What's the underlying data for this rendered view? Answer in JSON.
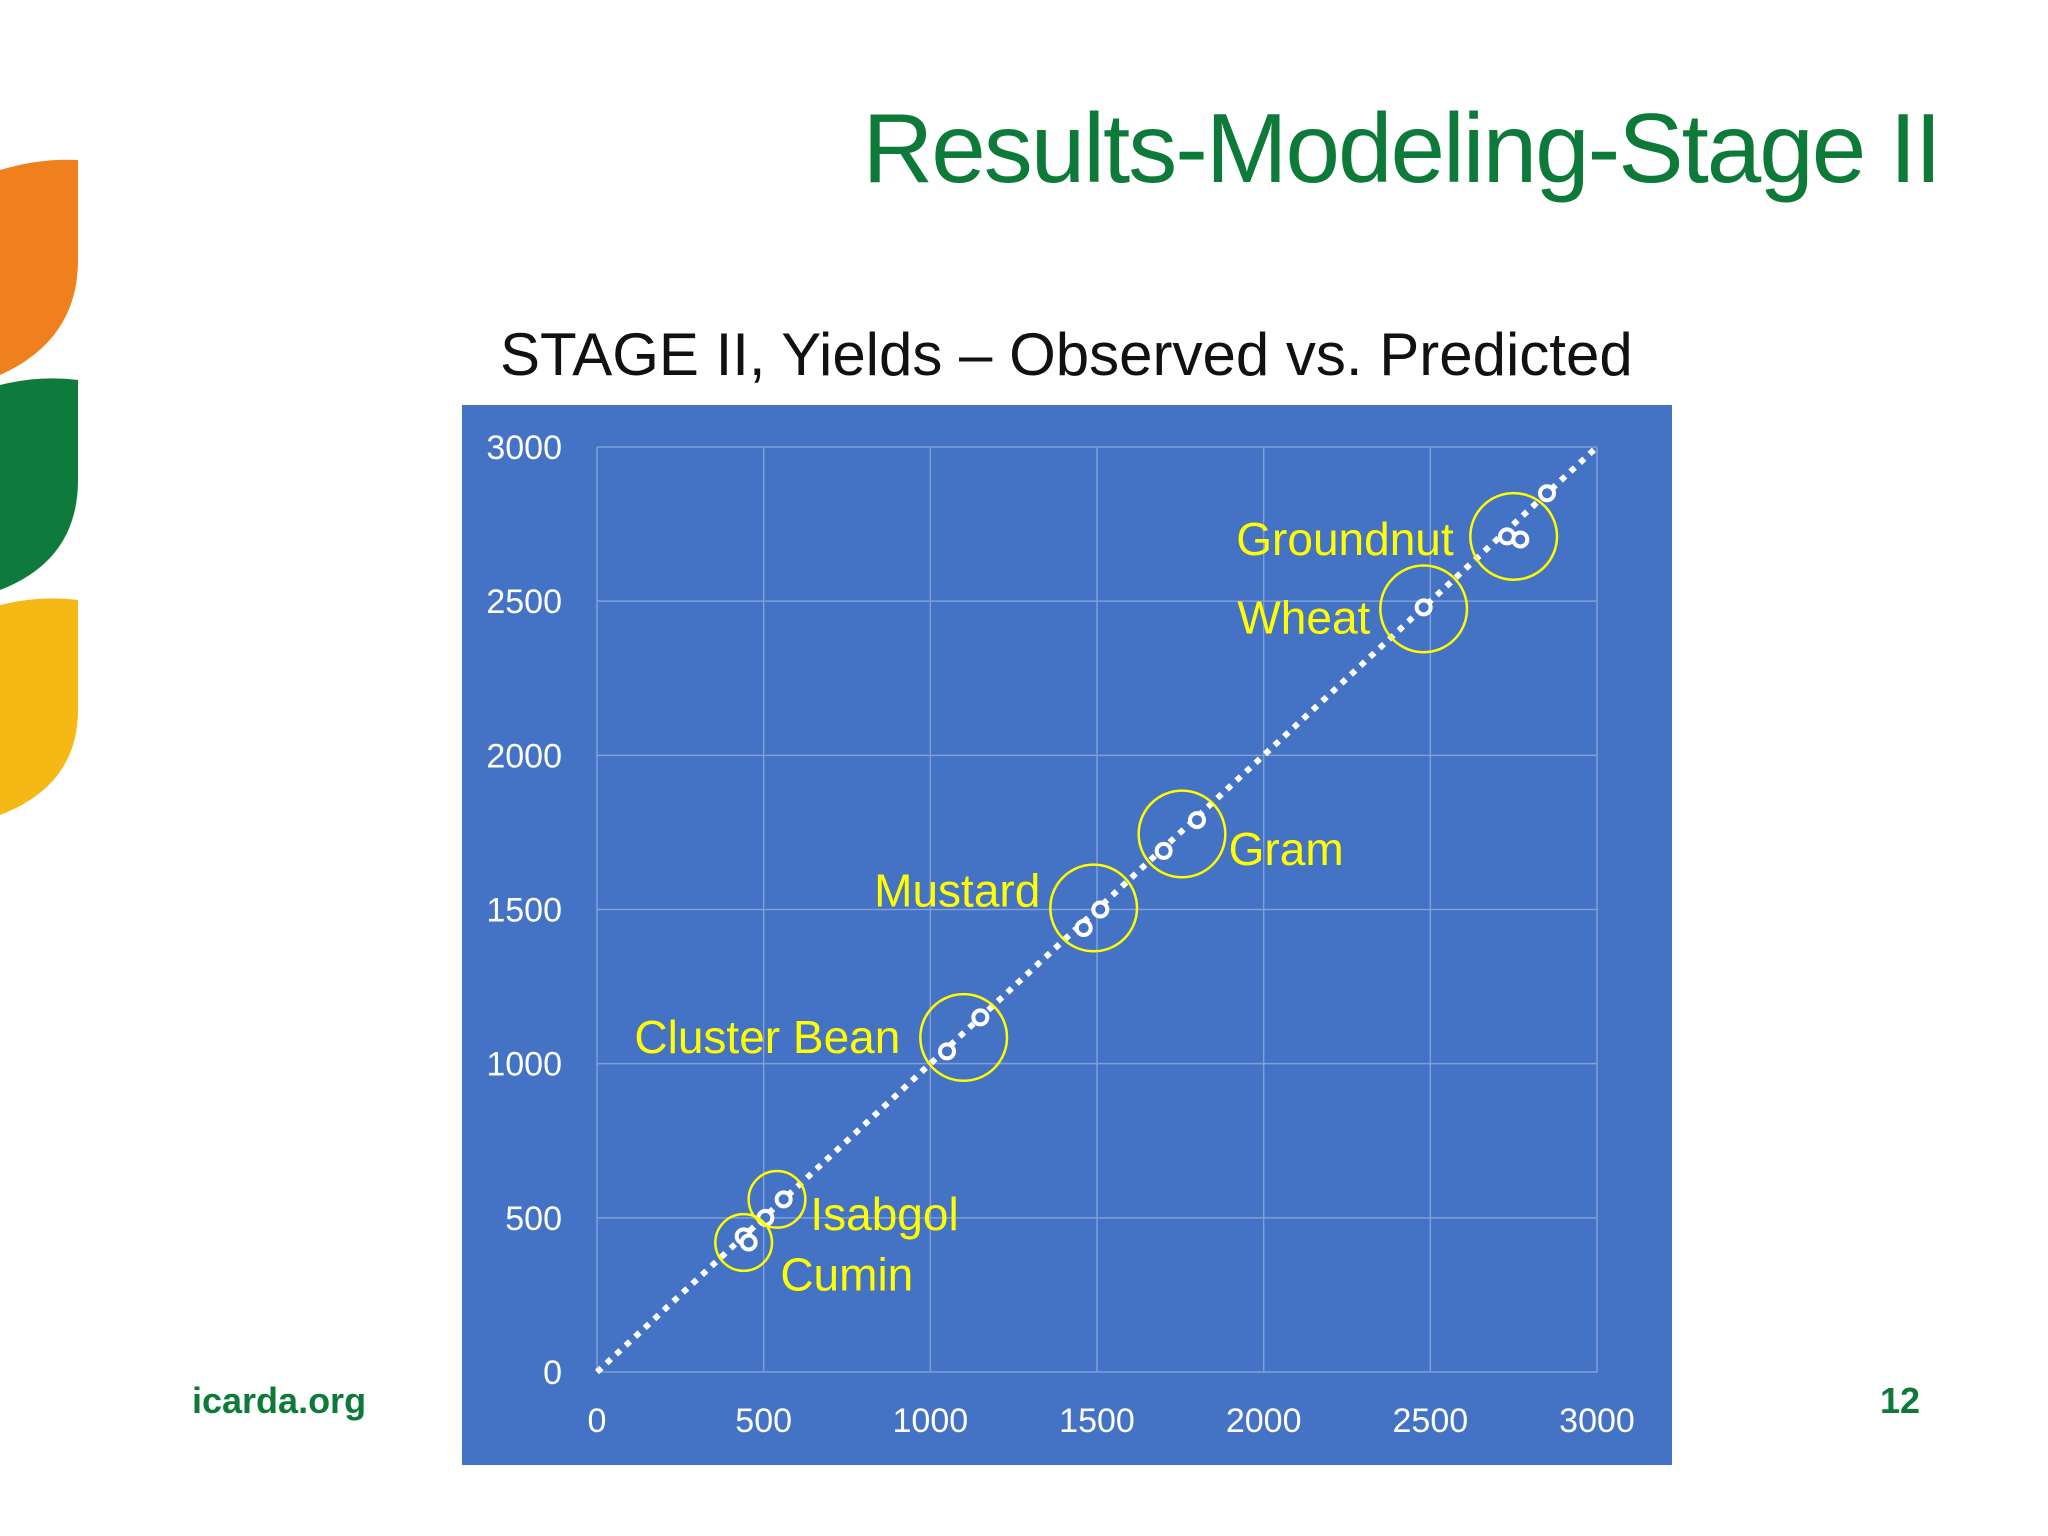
{
  "slide": {
    "title": "Results-Modeling-Stage II",
    "footer_left": "icarda.org",
    "page_number": "12"
  },
  "colors": {
    "title_green": "#0d7a3a",
    "chart_bg": "#4472c4",
    "label_yellow": "#ffff00",
    "logo_orange": "#f07f1d",
    "logo_green": "#0e7a3b",
    "logo_yellow": "#f5b814"
  },
  "chart_data": {
    "type": "scatter",
    "title": "STAGE II, Yields – Observed vs. Predicted",
    "xlabel": "",
    "ylabel": "",
    "xlim": [
      0,
      3000
    ],
    "ylim": [
      0,
      3000
    ],
    "xticks": [
      "0",
      "500",
      "1000",
      "1500",
      "2000",
      "2500",
      "3000"
    ],
    "yticks": [
      "0",
      "500",
      "1000",
      "1500",
      "2000",
      "2500",
      "3000"
    ],
    "grid": true,
    "trendline": {
      "style": "dotted",
      "from": [
        0,
        0
      ],
      "to": [
        3000,
        3000
      ]
    },
    "points": [
      {
        "x": 440,
        "y": 440
      },
      {
        "x": 455,
        "y": 420
      },
      {
        "x": 505,
        "y": 500
      },
      {
        "x": 560,
        "y": 560
      },
      {
        "x": 1050,
        "y": 1040
      },
      {
        "x": 1150,
        "y": 1150
      },
      {
        "x": 1460,
        "y": 1440
      },
      {
        "x": 1510,
        "y": 1500
      },
      {
        "x": 1700,
        "y": 1690
      },
      {
        "x": 1800,
        "y": 1790
      },
      {
        "x": 2480,
        "y": 2480
      },
      {
        "x": 2730,
        "y": 2710
      },
      {
        "x": 2770,
        "y": 2700
      },
      {
        "x": 2850,
        "y": 2850
      }
    ],
    "annotations": [
      {
        "label": "Groundnut",
        "cx": 2750,
        "cy": 2710,
        "r": 130,
        "anchor": "end",
        "lx": 2570,
        "ly": 2650
      },
      {
        "label": "Wheat",
        "cx": 2480,
        "cy": 2475,
        "r": 130,
        "anchor": "end",
        "lx": 2320,
        "ly": 2395
      },
      {
        "label": "Gram",
        "cx": 1755,
        "cy": 1745,
        "r": 130,
        "anchor": "start",
        "lx": 1895,
        "ly": 1645
      },
      {
        "label": "Mustard",
        "cx": 1490,
        "cy": 1505,
        "r": 130,
        "anchor": "end",
        "lx": 1330,
        "ly": 1510
      },
      {
        "label": "Cluster Bean",
        "cx": 1100,
        "cy": 1085,
        "r": 130,
        "anchor": "end",
        "lx": 910,
        "ly": 1035
      },
      {
        "label": "Isabgol",
        "cx": 540,
        "cy": 560,
        "r": 85,
        "anchor": "start",
        "lx": 640,
        "ly": 460
      },
      {
        "label": "Cumin",
        "cx": 440,
        "cy": 420,
        "r": 85,
        "anchor": "start",
        "lx": 550,
        "ly": 265
      }
    ]
  }
}
